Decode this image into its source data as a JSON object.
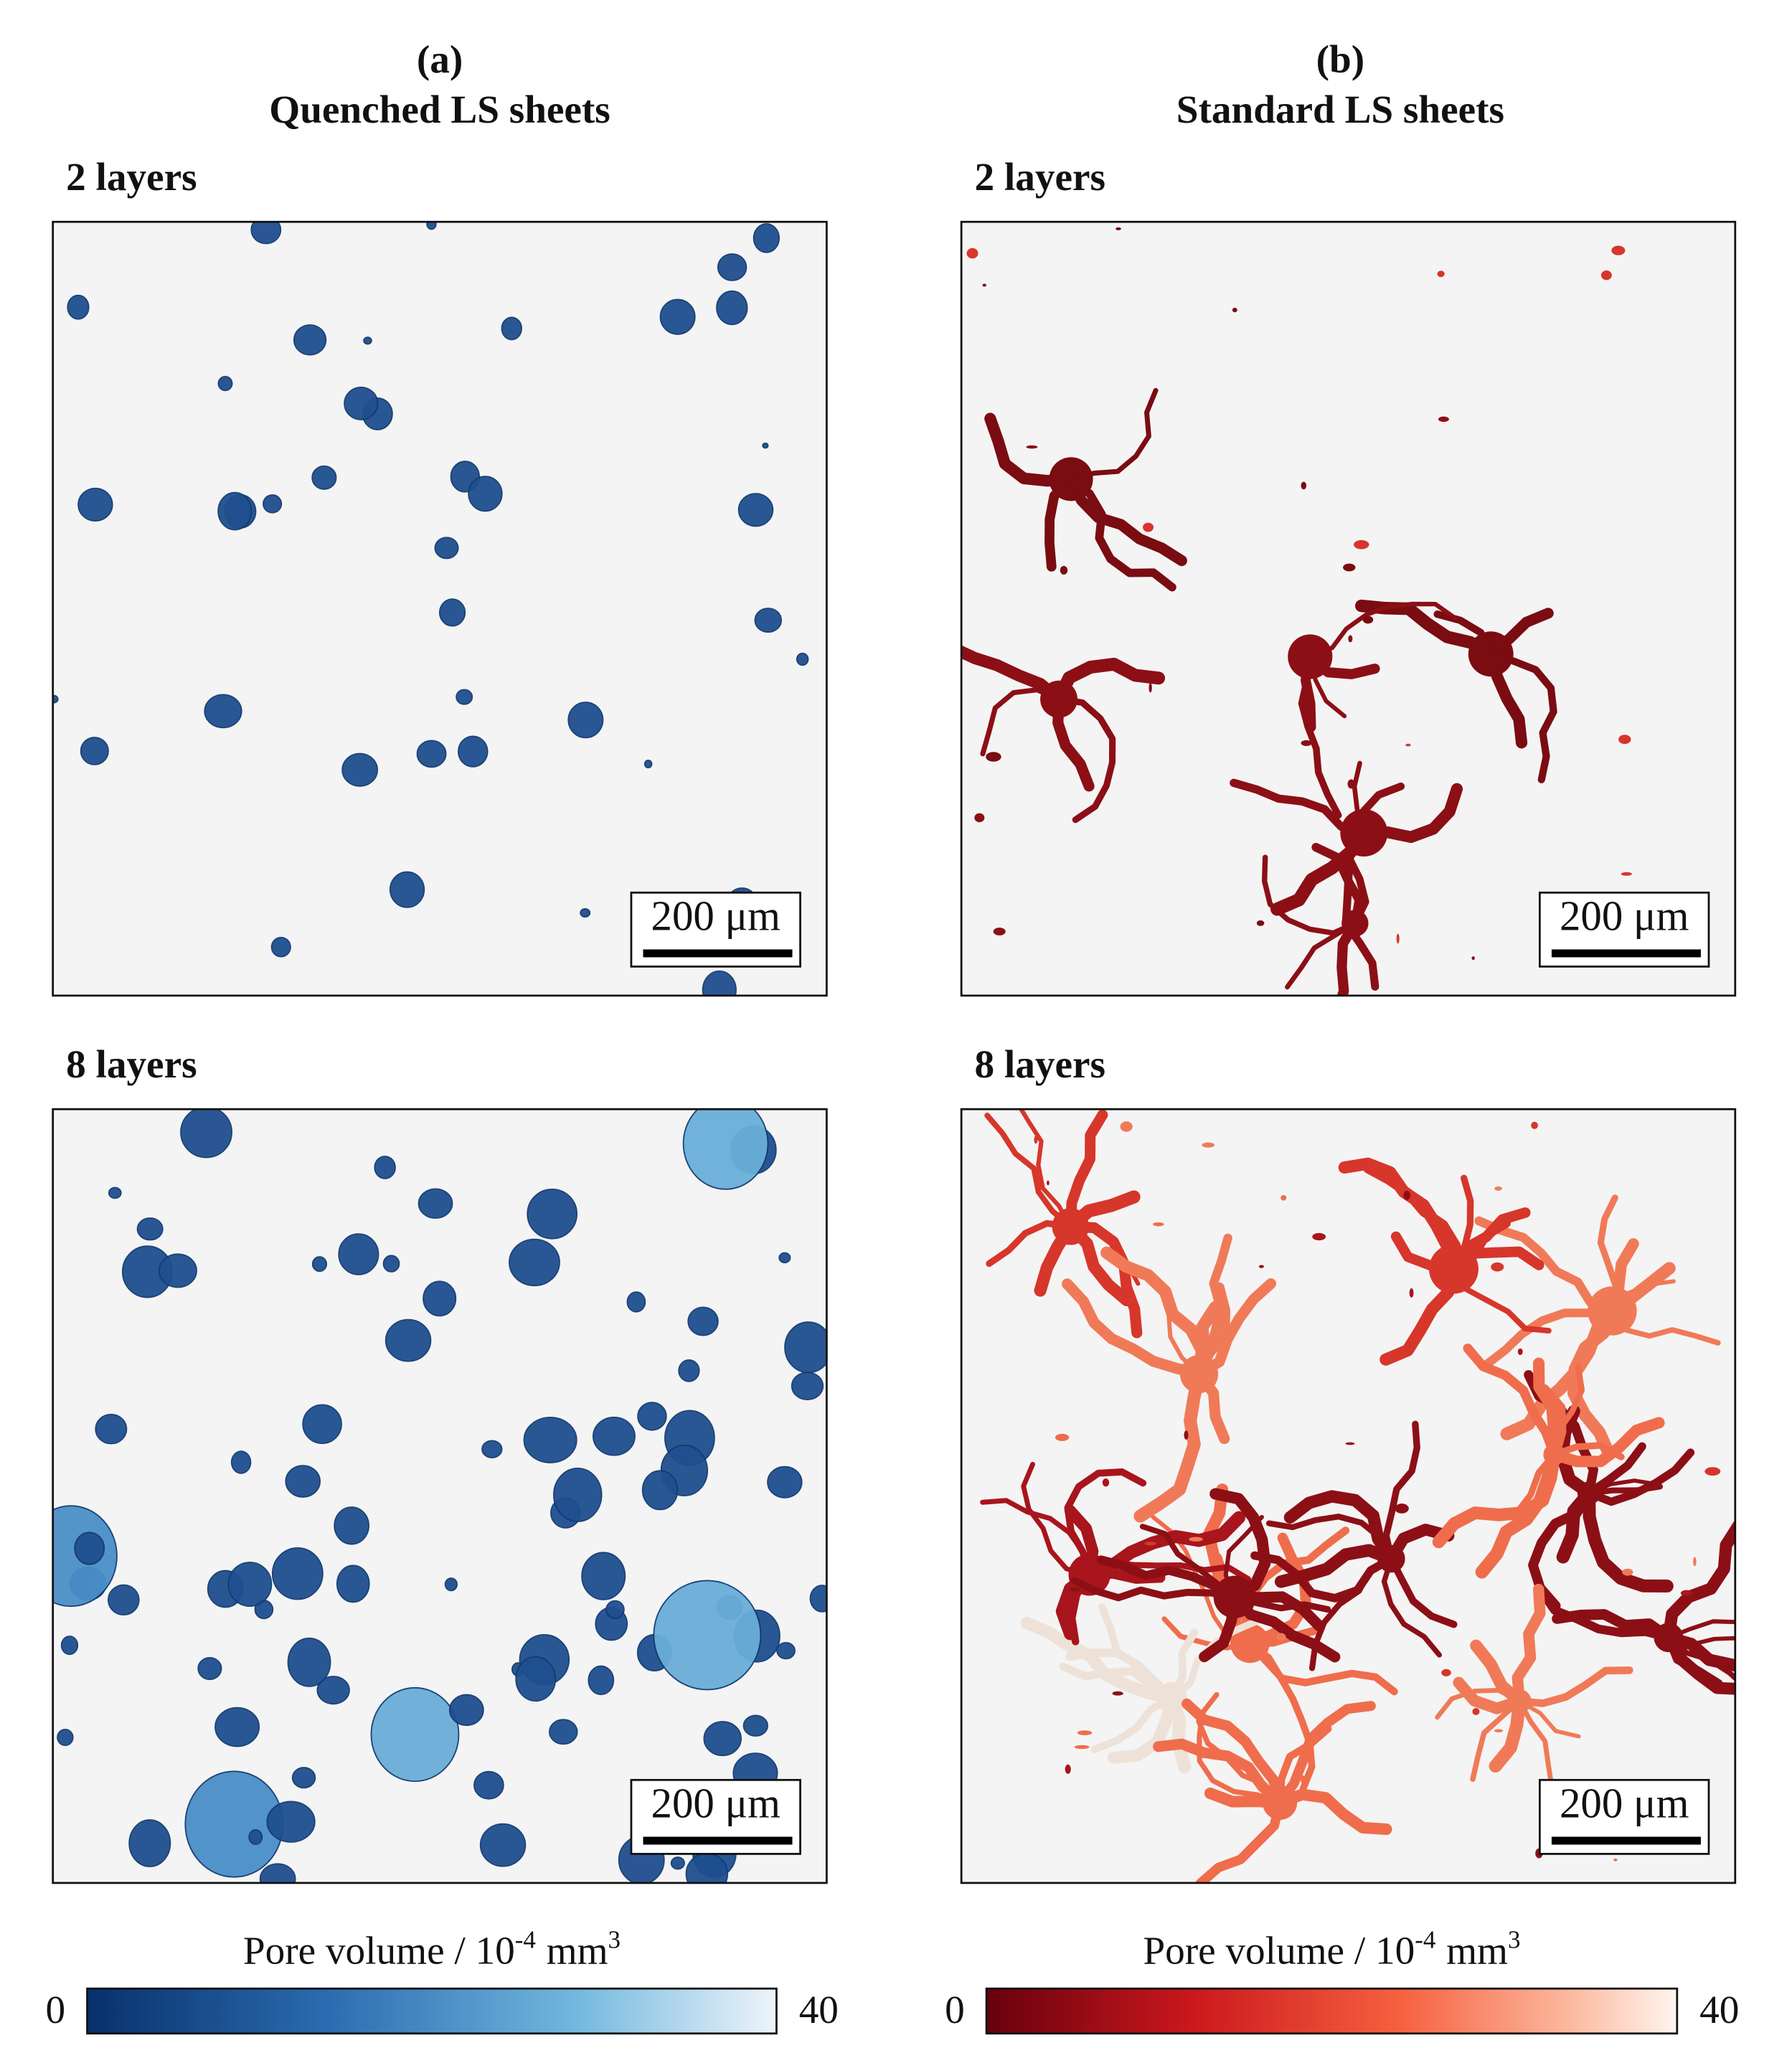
{
  "panels": [
    {
      "label": "(a)",
      "title": "Quenched LS sheets",
      "views": [
        {
          "heading": "2 layers",
          "scale_bar": "200 μm"
        },
        {
          "heading": "8 layers",
          "scale_bar": "200 μm"
        }
      ],
      "colorbar": {
        "title": "Pore volume / 10",
        "exponent": "-4",
        "unit": "mm",
        "unit_exponent": "3",
        "min": 0,
        "max": 40
      }
    },
    {
      "label": "(b)",
      "title": "Standard LS sheets",
      "views": [
        {
          "heading": "2 layers",
          "scale_bar": "200 μm"
        },
        {
          "heading": "8 layers",
          "scale_bar": "200 μm"
        }
      ],
      "colorbar": {
        "title": "Pore volume / 10",
        "exponent": "-4",
        "unit": "mm",
        "unit_exponent": "3",
        "min": 0,
        "max": 40
      }
    }
  ]
}
